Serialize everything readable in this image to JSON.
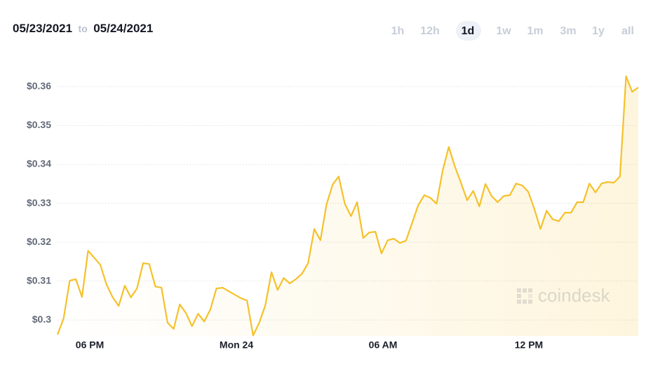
{
  "header": {
    "from": "05/23/2021",
    "to_word": "to",
    "to": "05/24/2021"
  },
  "ranges": [
    "1h",
    "12h",
    "1d",
    "1w",
    "1m",
    "3m",
    "1y",
    "all"
  ],
  "active_range": "1d",
  "watermark": "coindesk",
  "chart_data": {
    "type": "line",
    "color": "#f5c12a",
    "grid": true,
    "values": [
      0.2962,
      0.3004,
      0.3101,
      0.3105,
      0.3059,
      0.3178,
      0.316,
      0.3142,
      0.3092,
      0.3059,
      0.3036,
      0.3088,
      0.3058,
      0.3081,
      0.3146,
      0.3144,
      0.3086,
      0.3083,
      0.2993,
      0.2977,
      0.304,
      0.3018,
      0.2984,
      0.3016,
      0.2996,
      0.3027,
      0.3081,
      0.3083,
      0.3074,
      0.3065,
      0.3056,
      0.305,
      0.296,
      0.2993,
      0.3038,
      0.3123,
      0.3077,
      0.3108,
      0.3094,
      0.3105,
      0.3119,
      0.3146,
      0.3234,
      0.3205,
      0.3297,
      0.3348,
      0.3369,
      0.3299,
      0.3267,
      0.3303,
      0.3211,
      0.3225,
      0.3227,
      0.3171,
      0.3205,
      0.3209,
      0.3198,
      0.3204,
      0.3249,
      0.3295,
      0.3321,
      0.3314,
      0.3299,
      0.3384,
      0.3445,
      0.3395,
      0.3353,
      0.3308,
      0.3332,
      0.3292,
      0.335,
      0.3319,
      0.3303,
      0.3319,
      0.3321,
      0.3351,
      0.3346,
      0.333,
      0.3286,
      0.3234,
      0.3281,
      0.3259,
      0.3254,
      0.3276,
      0.3276,
      0.3303,
      0.3303,
      0.3351,
      0.3328,
      0.3351,
      0.3355,
      0.3353,
      0.3369,
      0.3627,
      0.3587,
      0.3598
    ],
    "xlim": [
      0,
      95
    ],
    "xticks": [
      {
        "value": 5.28,
        "label": "06 PM"
      },
      {
        "value": 29.26,
        "label": "Mon 24"
      },
      {
        "value": 53.24,
        "label": "06 AM"
      },
      {
        "value": 77.1,
        "label": "12 PM"
      }
    ],
    "ylim": [
      0.2959,
      0.3661
    ],
    "yticks": [
      {
        "value": 0.3,
        "label": "$0.3"
      },
      {
        "value": 0.31,
        "label": "$0.31"
      },
      {
        "value": 0.32,
        "label": "$0.32"
      },
      {
        "value": 0.33,
        "label": "$0.33"
      },
      {
        "value": 0.34,
        "label": "$0.34"
      },
      {
        "value": 0.35,
        "label": "$0.35"
      },
      {
        "value": 0.36,
        "label": "$0.36"
      }
    ]
  }
}
